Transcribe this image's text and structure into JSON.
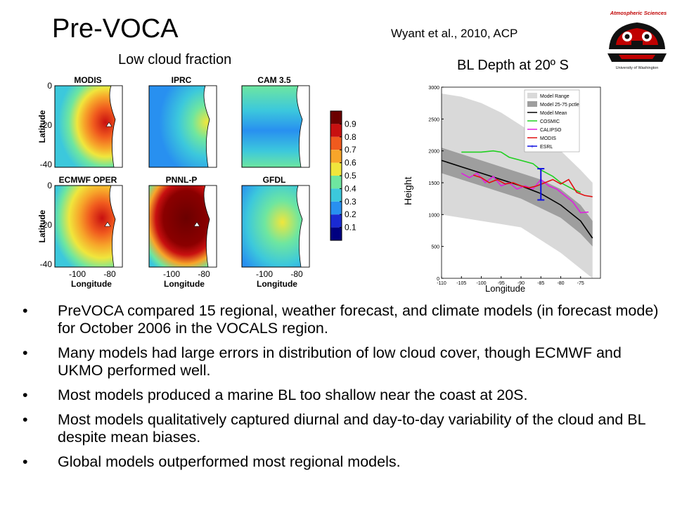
{
  "title": "Pre-VOCA",
  "citation": "Wyant et al., 2010, ACP",
  "logo": {
    "text_top": "Atmospheric Sciences",
    "text_bottom": "University of Washington"
  },
  "lcf": {
    "title": "Low cloud fraction",
    "panels": [
      "MODIS",
      "IPRC",
      "CAM 3.5",
      "ECMWF OPER",
      "PNNL-P",
      "GFDL"
    ],
    "ylabel": "Latitude",
    "xlabel": "Longitude",
    "yticks": [
      "0",
      "-20",
      "-40"
    ],
    "xticks": [
      "-100",
      "-80"
    ],
    "colorbar": {
      "ticks": [
        "0.9",
        "0.8",
        "0.7",
        "0.6",
        "0.5",
        "0.4",
        "0.3",
        "0.2",
        "0.1"
      ],
      "colors": [
        "#6b0000",
        "#c81010",
        "#f05a1e",
        "#f7a52a",
        "#f0e63c",
        "#6ee6a0",
        "#3cc8dc",
        "#2890f0",
        "#1a2ad2",
        "#000080"
      ]
    }
  },
  "bl": {
    "title": "BL Depth at 20º S",
    "ylabel": "Height",
    "xlabel": "Longitude"
  },
  "chart_data": {
    "type": "line",
    "title": "BL Depth at 20º S",
    "xlabel": "Longitude",
    "ylabel": "Height",
    "xlim": [
      -110,
      -70
    ],
    "ylim": [
      0,
      3000
    ],
    "xticks": [
      -110,
      -105,
      -100,
      -95,
      -90,
      -85,
      -80,
      -75
    ],
    "yticks": [
      0,
      500,
      1000,
      1500,
      2000,
      2500,
      3000
    ],
    "legend": [
      "Model Range",
      "Model 25-75 pctle",
      "Model Mean",
      "COSMIC",
      "CALIPSO",
      "MODIS",
      "ESRL"
    ],
    "legend_position": "top-right",
    "bands": [
      {
        "name": "Model Range",
        "color": "#d9d9d9",
        "x": [
          -110,
          -105,
          -100,
          -95,
          -90,
          -85,
          -80,
          -75,
          -72
        ],
        "low": [
          1000,
          950,
          900,
          850,
          800,
          600,
          400,
          150,
          0
        ],
        "high": [
          2900,
          2850,
          2750,
          2600,
          2400,
          2200,
          2000,
          1700,
          1500
        ]
      },
      {
        "name": "Model 25-75 pctle",
        "color": "#9e9e9e",
        "x": [
          -110,
          -105,
          -100,
          -95,
          -90,
          -85,
          -80,
          -75,
          -72
        ],
        "low": [
          1650,
          1550,
          1450,
          1350,
          1250,
          1100,
          950,
          700,
          500
        ],
        "high": [
          2050,
          1950,
          1850,
          1750,
          1650,
          1550,
          1400,
          1150,
          900
        ]
      }
    ],
    "series": [
      {
        "name": "Model Mean",
        "color": "#000000",
        "x": [
          -110,
          -105,
          -100,
          -95,
          -90,
          -85,
          -80,
          -75,
          -72
        ],
        "y": [
          1850,
          1750,
          1650,
          1550,
          1450,
          1330,
          1150,
          900,
          630
        ]
      },
      {
        "name": "COSMIC",
        "color": "#20d020",
        "x": [
          -105,
          -100,
          -97,
          -95,
          -93,
          -90,
          -87,
          -85,
          -82,
          -80,
          -77,
          -75
        ],
        "y": [
          1980,
          1980,
          2000,
          1980,
          1900,
          1850,
          1800,
          1700,
          1600,
          1500,
          1400,
          1350
        ]
      },
      {
        "name": "CALIPSO",
        "color": "#e020e0",
        "x": [
          -105,
          -103,
          -101,
          -99,
          -97,
          -95,
          -93,
          -91,
          -89,
          -87,
          -85,
          -83,
          -81,
          -79,
          -77,
          -75,
          -73
        ],
        "y": [
          1650,
          1580,
          1650,
          1500,
          1600,
          1450,
          1500,
          1400,
          1450,
          1400,
          1550,
          1450,
          1400,
          1300,
          1200,
          1030,
          1040
        ]
      },
      {
        "name": "MODIS",
        "color": "#e01010",
        "x": [
          -102,
          -100,
          -98,
          -96,
          -94,
          -92,
          -90,
          -88,
          -86,
          -84,
          -82,
          -80,
          -78,
          -76,
          -74,
          -72
        ],
        "y": [
          1620,
          1580,
          1500,
          1550,
          1480,
          1500,
          1450,
          1420,
          1450,
          1500,
          1550,
          1480,
          1550,
          1350,
          1300,
          1280
        ]
      },
      {
        "name": "ESRL",
        "color": "#1010e0",
        "errorbar": true,
        "x": [
          -85
        ],
        "y": [
          1480
        ],
        "err_low": [
          1230
        ],
        "err_high": [
          1720
        ]
      }
    ]
  },
  "bullets": [
    "PreVOCA compared 15 regional, weather forecast, and climate models (in forecast mode) for October 2006 in the VOCALS region.",
    "Many models had large errors in distribution of low cloud cover, though ECMWF and UKMO performed well.",
    "Most models produced a marine BL too shallow near the coast at 20S.",
    "Most models qualitatively captured diurnal and day-to-day variability of the cloud and BL despite mean biases.",
    "Global models outperformed most regional models."
  ]
}
